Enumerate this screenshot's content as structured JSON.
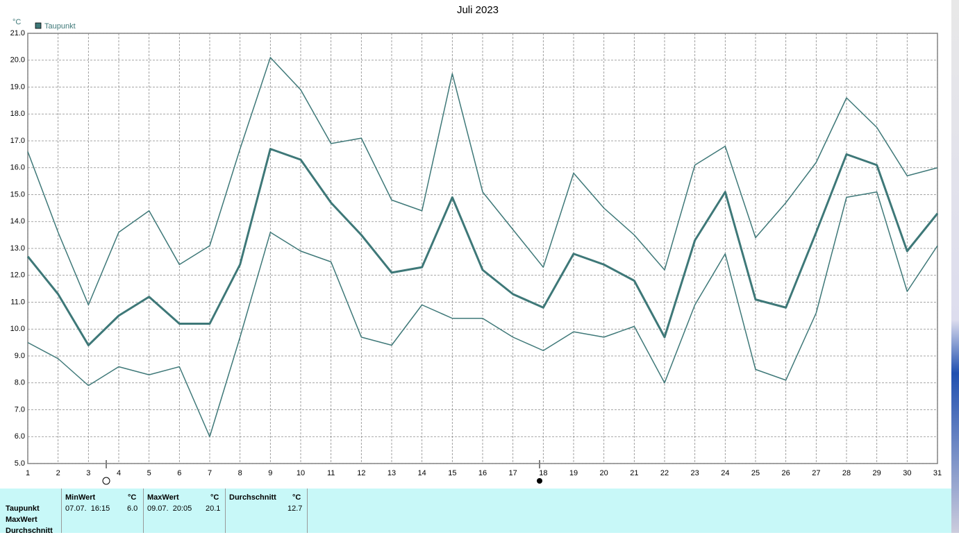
{
  "chart_data": {
    "type": "line",
    "title": "Juli 2023",
    "y_unit": "°C",
    "x": [
      1,
      2,
      3,
      4,
      5,
      6,
      7,
      8,
      9,
      10,
      11,
      12,
      13,
      14,
      15,
      16,
      17,
      18,
      19,
      20,
      21,
      22,
      23,
      24,
      25,
      26,
      27,
      28,
      29,
      30,
      31
    ],
    "xlim": [
      1,
      31
    ],
    "ylim": [
      5,
      21
    ],
    "yticks": [
      {
        "value": 5,
        "label": "5.0"
      },
      {
        "value": 6,
        "label": "6.0"
      },
      {
        "value": 7,
        "label": "7.0"
      },
      {
        "value": 8,
        "label": "8.0"
      },
      {
        "value": 9,
        "label": "9.0"
      },
      {
        "value": 10,
        "label": "10.0"
      },
      {
        "value": 11,
        "label": "11.0"
      },
      {
        "value": 12,
        "label": "12.0"
      },
      {
        "value": 13,
        "label": "13.0"
      },
      {
        "value": 14,
        "label": "14.0"
      },
      {
        "value": 15,
        "label": "15.0"
      },
      {
        "value": 16,
        "label": "16.0"
      },
      {
        "value": 17,
        "label": "17.0"
      },
      {
        "value": 18,
        "label": "18.0"
      },
      {
        "value": 19,
        "label": "19.0"
      },
      {
        "value": 20,
        "label": "20.0"
      },
      {
        "value": 21,
        "label": "21.0"
      }
    ],
    "grid": true,
    "series": [
      {
        "name": "Taupunkt",
        "color": "#3e7878",
        "width": 3,
        "values": [
          12.7,
          11.3,
          9.4,
          10.5,
          11.2,
          10.2,
          10.2,
          12.4,
          16.7,
          16.3,
          14.7,
          13.5,
          12.1,
          12.3,
          14.9,
          12.2,
          11.3,
          10.8,
          12.8,
          12.4,
          11.8,
          9.7,
          13.3,
          15.1,
          11.1,
          10.8,
          13.6,
          16.5,
          16.1,
          12.9,
          14.3
        ]
      },
      {
        "color": "#3e7878",
        "width": 1.5,
        "values": [
          16.6,
          13.6,
          10.9,
          13.6,
          14.4,
          12.4,
          13.1,
          16.7,
          20.1,
          18.9,
          16.9,
          17.1,
          14.8,
          14.4,
          19.5,
          15.1,
          13.7,
          12.3,
          15.8,
          14.5,
          13.5,
          12.2,
          16.1,
          16.8,
          13.4,
          14.7,
          16.2,
          18.6,
          17.5,
          15.7,
          16.0
        ]
      },
      {
        "color": "#3e7878",
        "width": 1.5,
        "values": [
          9.5,
          8.9,
          7.9,
          8.6,
          8.3,
          8.6,
          6.0,
          9.7,
          13.6,
          12.9,
          12.5,
          9.7,
          9.4,
          10.9,
          10.4,
          10.4,
          9.7,
          9.2,
          9.9,
          9.7,
          10.1,
          8.0,
          10.9,
          12.8,
          8.5,
          8.1,
          10.6,
          14.9,
          15.1,
          11.4,
          13.1
        ]
      }
    ]
  },
  "table": {
    "header": {
      "min": "MinWert",
      "min_unit": "°C",
      "max": "MaxWert",
      "max_unit": "°C",
      "avg": "Durchschnitt",
      "avg_unit": "°C"
    },
    "rows": [
      {
        "label": "Taupunkt",
        "min_time": "07.07.  16:15",
        "min": "6.0",
        "max_time": "09.07.  20:05",
        "max": "20.1",
        "avg": "12.7"
      },
      {
        "label": "MaxWert"
      },
      {
        "label": "Durchschnitt"
      }
    ]
  }
}
